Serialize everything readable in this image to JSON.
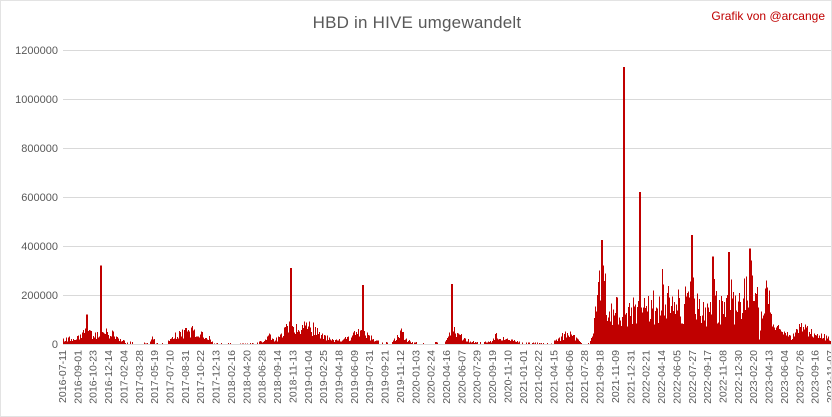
{
  "header": {
    "title": "HBD in HIVE umgewandelt",
    "credit": "Grafik von @arcange"
  },
  "chart_data": {
    "type": "bar",
    "title": "HBD in HIVE umgewandelt",
    "xlabel": "",
    "ylabel": "",
    "ylim": [
      0,
      1200000
    ],
    "yticks": [
      0,
      200000,
      400000,
      600000,
      800000,
      1000000,
      1200000
    ],
    "ytick_labels": [
      "0",
      "200000",
      "400000",
      "600000",
      "800000",
      "1000000",
      "1200000"
    ],
    "xtick_labels": [
      "2016-07-11",
      "2016-09-01",
      "2016-10-23",
      "2016-12-14",
      "2017-02-04",
      "2017-03-28",
      "2017-05-19",
      "2017-07-10",
      "2017-08-31",
      "2017-10-22",
      "2017-12-13",
      "2018-02-16",
      "2018-04-20",
      "2018-06-28",
      "2018-09-14",
      "2018-11-13",
      "2019-01-04",
      "2019-02-25",
      "2019-04-18",
      "2019-06-09",
      "2019-07-31",
      "2019-09-21",
      "2019-11-12",
      "2020-01-03",
      "2020-02-24",
      "2020-04-16",
      "2020-06-07",
      "2020-07-29",
      "2020-09-19",
      "2020-11-10",
      "2021-01-01",
      "2021-02-22",
      "2021-04-15",
      "2021-06-06",
      "2021-07-28",
      "2021-09-18",
      "2021-11-09",
      "2021-12-31",
      "2022-02-21",
      "2022-04-14",
      "2022-06-05",
      "2022-07-27",
      "2022-09-17",
      "2022-11-08",
      "2022-12-30",
      "2023-02-20",
      "2023-04-13",
      "2023-06-04",
      "2023-07-26",
      "2023-09-16",
      "2023-11-07"
    ],
    "bar_color": "#c00000",
    "grid_color": "#d9d9d9",
    "axis_text_color": "#595959",
    "grid": true,
    "legend": "none",
    "x_axis_note": "daily HBD-to-HIVE conversion amounts; one bar per day, ticks every 52 data points",
    "envelope": [
      [
        0.0,
        25000
      ],
      [
        0.01,
        35000
      ],
      [
        0.023,
        45000
      ],
      [
        0.03,
        90000
      ],
      [
        0.034,
        60000
      ],
      [
        0.043,
        55000
      ],
      [
        0.049,
        65000
      ],
      [
        0.056,
        65000
      ],
      [
        0.065,
        55000
      ],
      [
        0.073,
        30000
      ],
      [
        0.081,
        12000
      ],
      [
        0.095,
        8000
      ],
      [
        0.112,
        6000
      ],
      [
        0.116,
        45000
      ],
      [
        0.12,
        5000
      ],
      [
        0.134,
        4000
      ],
      [
        0.141,
        35000
      ],
      [
        0.147,
        55000
      ],
      [
        0.167,
        80000
      ],
      [
        0.173,
        60000
      ],
      [
        0.186,
        55000
      ],
      [
        0.191,
        30000
      ],
      [
        0.196,
        4000
      ],
      [
        0.212,
        6000
      ],
      [
        0.232,
        3000
      ],
      [
        0.251,
        4000
      ],
      [
        0.262,
        20000
      ],
      [
        0.268,
        45000
      ],
      [
        0.275,
        25000
      ],
      [
        0.281,
        35000
      ],
      [
        0.288,
        70000
      ],
      [
        0.293,
        110000
      ],
      [
        0.298,
        100000
      ],
      [
        0.305,
        85000
      ],
      [
        0.312,
        100000
      ],
      [
        0.32,
        110000
      ],
      [
        0.327,
        95000
      ],
      [
        0.333,
        60000
      ],
      [
        0.342,
        40000
      ],
      [
        0.352,
        20000
      ],
      [
        0.362,
        25000
      ],
      [
        0.372,
        35000
      ],
      [
        0.383,
        70000
      ],
      [
        0.389,
        60000
      ],
      [
        0.396,
        50000
      ],
      [
        0.404,
        30000
      ],
      [
        0.411,
        12000
      ],
      [
        0.427,
        8000
      ],
      [
        0.436,
        45000
      ],
      [
        0.441,
        70000
      ],
      [
        0.447,
        25000
      ],
      [
        0.456,
        8000
      ],
      [
        0.479,
        6000
      ],
      [
        0.497,
        12000
      ],
      [
        0.503,
        60000
      ],
      [
        0.508,
        80000
      ],
      [
        0.516,
        55000
      ],
      [
        0.523,
        35000
      ],
      [
        0.531,
        15000
      ],
      [
        0.544,
        10000
      ],
      [
        0.557,
        15000
      ],
      [
        0.565,
        55000
      ],
      [
        0.57,
        30000
      ],
      [
        0.577,
        60000
      ],
      [
        0.583,
        25000
      ],
      [
        0.596,
        10000
      ],
      [
        0.616,
        6000
      ],
      [
        0.635,
        5000
      ],
      [
        0.644,
        25000
      ],
      [
        0.651,
        50000
      ],
      [
        0.656,
        70000
      ],
      [
        0.663,
        45000
      ],
      [
        0.669,
        25000
      ],
      [
        0.674,
        4000
      ],
      [
        0.685,
        8000
      ],
      [
        0.69,
        80000
      ],
      [
        0.694,
        220000
      ],
      [
        0.698,
        350000
      ],
      [
        0.703,
        360000
      ],
      [
        0.708,
        280000
      ],
      [
        0.713,
        230000
      ],
      [
        0.717,
        220000
      ],
      [
        0.721,
        250000
      ],
      [
        0.726,
        175000
      ],
      [
        0.732,
        185000
      ],
      [
        0.739,
        170000
      ],
      [
        0.745,
        230000
      ],
      [
        0.75,
        185000
      ],
      [
        0.756,
        205000
      ],
      [
        0.76,
        250000
      ],
      [
        0.765,
        185000
      ],
      [
        0.769,
        230000
      ],
      [
        0.776,
        195000
      ],
      [
        0.78,
        340000
      ],
      [
        0.785,
        205000
      ],
      [
        0.79,
        330000
      ],
      [
        0.795,
        200000
      ],
      [
        0.801,
        245000
      ],
      [
        0.806,
        195000
      ],
      [
        0.81,
        280000
      ],
      [
        0.815,
        215000
      ],
      [
        0.819,
        430000
      ],
      [
        0.823,
        330000
      ],
      [
        0.828,
        195000
      ],
      [
        0.834,
        175000
      ],
      [
        0.841,
        195000
      ],
      [
        0.846,
        350000
      ],
      [
        0.851,
        235000
      ],
      [
        0.857,
        205000
      ],
      [
        0.862,
        235000
      ],
      [
        0.867,
        365000
      ],
      [
        0.872,
        235000
      ],
      [
        0.879,
        215000
      ],
      [
        0.885,
        270000
      ],
      [
        0.89,
        295000
      ],
      [
        0.894,
        385000
      ],
      [
        0.9,
        295000
      ],
      [
        0.905,
        255000
      ],
      [
        0.9065,
        1000
      ],
      [
        0.909,
        235000
      ],
      [
        0.911,
        275000
      ],
      [
        0.917,
        255000
      ],
      [
        0.92,
        225000
      ],
      [
        0.923,
        105000
      ],
      [
        0.927,
        65000
      ],
      [
        0.931,
        90000
      ],
      [
        0.936,
        58000
      ],
      [
        0.943,
        48000
      ],
      [
        0.949,
        42000
      ],
      [
        0.955,
        68000
      ],
      [
        0.962,
        100000
      ],
      [
        0.969,
        88000
      ],
      [
        0.975,
        72000
      ],
      [
        0.982,
        52000
      ],
      [
        0.988,
        56000
      ],
      [
        0.995,
        38000
      ],
      [
        1.0,
        28000
      ]
    ],
    "spikes": [
      {
        "f": 0.031,
        "value": 120000,
        "near": "2016-10-23"
      },
      {
        "f": 0.049,
        "value": 320000,
        "near": "2016-10-23"
      },
      {
        "f": 0.297,
        "value": 310000,
        "near": "2018-11-13"
      },
      {
        "f": 0.391,
        "value": 240000,
        "near": "2019-07-31"
      },
      {
        "f": 0.506,
        "value": 245000,
        "near": "2020-04-16"
      },
      {
        "f": 0.702,
        "value": 425000,
        "near": "2021-09-18"
      },
      {
        "f": 0.73,
        "value": 1130000,
        "near": "2021-12-31"
      },
      {
        "f": 0.751,
        "value": 620000,
        "near": "2022-02-21"
      },
      {
        "f": 0.819,
        "value": 445000,
        "near": "2022-07-27"
      },
      {
        "f": 0.846,
        "value": 358000,
        "near": "2022-09-17"
      },
      {
        "f": 0.867,
        "value": 375000,
        "near": "2022-11-08"
      },
      {
        "f": 0.894,
        "value": 390000,
        "near": "2022-12-30"
      }
    ]
  }
}
